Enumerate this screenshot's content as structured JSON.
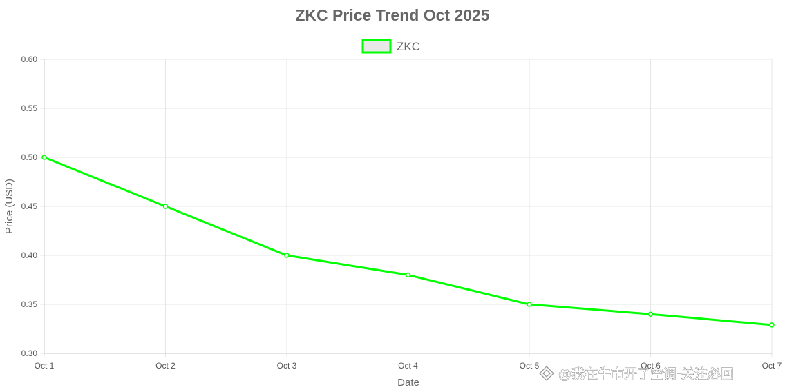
{
  "chart_data": {
    "type": "line",
    "title": "ZKC Price Trend Oct 2025",
    "xlabel": "Date",
    "ylabel": "Price (USD)",
    "categories": [
      "Oct 1",
      "Oct 2",
      "Oct 3",
      "Oct 4",
      "Oct 5",
      "Oct 6",
      "Oct 7"
    ],
    "series": [
      {
        "name": "ZKC",
        "values": [
          0.5,
          0.45,
          0.4,
          0.38,
          0.35,
          0.34,
          0.329
        ],
        "color": "#00ff00"
      }
    ],
    "ylim": [
      0.3,
      0.6
    ],
    "yticks": [
      "0.60",
      "0.55",
      "0.50",
      "0.45",
      "0.40",
      "0.35",
      "0.30"
    ],
    "grid": true,
    "legend": "top-center",
    "grid_color": "#e6e6e6",
    "axis_color": "#c8c8c8",
    "legend_fill": "#e8e8e8"
  },
  "watermark": {
    "text": "@我在牛市开了空调-关注必回",
    "icon": "diamond-logo-icon"
  }
}
